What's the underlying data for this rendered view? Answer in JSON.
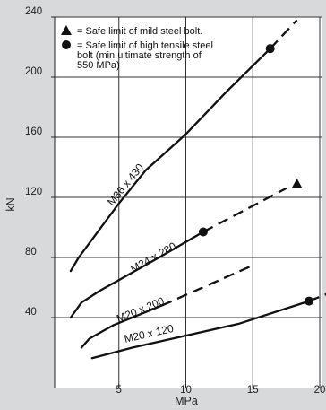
{
  "chart_data": {
    "type": "line",
    "xlabel": "MPa",
    "ylabel": "kN",
    "xlim": [
      0,
      20
    ],
    "ylim": [
      0,
      240
    ],
    "x_ticks": [
      5,
      10,
      15,
      20
    ],
    "y_ticks": [
      40,
      80,
      120,
      160,
      200,
      240
    ],
    "x_tick_labels": [
      "5",
      "10",
      "15",
      "20"
    ],
    "y_tick_labels": [
      "40",
      "80",
      "120",
      "160",
      "200",
      "240"
    ],
    "grid": true,
    "legend": [
      {
        "marker": "triangle",
        "lines": [
          "= Safe limit of mild steel bolt."
        ]
      },
      {
        "marker": "circle",
        "lines": [
          "= Safe limit of high tensile steel",
          "bolt (min ultimate strength of",
          "550 MPa)"
        ]
      }
    ],
    "series": [
      {
        "name": "M36 x 430",
        "solid": [
          [
            1.4,
            71
          ],
          [
            2,
            80
          ],
          [
            3,
            92
          ],
          [
            5,
            116
          ],
          [
            7,
            138
          ],
          [
            10,
            162
          ],
          [
            13,
            190
          ],
          [
            16.3,
            219
          ]
        ],
        "dashed": [
          [
            16.3,
            219
          ],
          [
            18.3,
            238
          ]
        ],
        "markers": [
          {
            "type": "circle",
            "x": 16.3,
            "y": 219
          }
        ]
      },
      {
        "name": "M24 x 280",
        "solid": [
          [
            1.4,
            40
          ],
          [
            2.2,
            50
          ],
          [
            3.6,
            58
          ],
          [
            6,
            70
          ],
          [
            8,
            80
          ],
          [
            11.3,
            97
          ]
        ],
        "dashed": [
          [
            11.3,
            97
          ],
          [
            17.5,
            126
          ]
        ],
        "markers": [
          {
            "type": "circle",
            "x": 11.3,
            "y": 97
          },
          {
            "type": "triangle",
            "x": 18.3,
            "y": 129
          }
        ]
      },
      {
        "name": "M20 x 200",
        "solid": [
          [
            2.2,
            20
          ],
          [
            2.8,
            26
          ],
          [
            4.6,
            35
          ],
          [
            8.2,
            48
          ]
        ],
        "dashed": [
          [
            8.2,
            48
          ],
          [
            14.8,
            74
          ]
        ],
        "markers": []
      },
      {
        "name": "M20 x 120",
        "solid": [
          [
            3,
            13
          ],
          [
            6,
            20
          ],
          [
            10,
            28
          ],
          [
            14,
            36
          ],
          [
            19.2,
            51
          ]
        ],
        "dashed": [
          [
            19.2,
            51
          ],
          [
            20.6,
            56
          ]
        ],
        "markers": [
          {
            "type": "circle",
            "x": 19.2,
            "y": 51
          }
        ]
      }
    ],
    "curve_labels": [
      {
        "text": "M36 x 430",
        "series": "M36 x 430",
        "x": 5.7,
        "y": 127
      },
      {
        "text": "M24 x 280",
        "series": "M24 x 280",
        "x": 7.7,
        "y": 78
      },
      {
        "text": "M20 x 200",
        "series": "M20 x 200",
        "x": 6.7,
        "y": 43
      },
      {
        "text": "M20 x 120",
        "series": "M20 x 120",
        "x": 7.3,
        "y": 27
      }
    ]
  }
}
